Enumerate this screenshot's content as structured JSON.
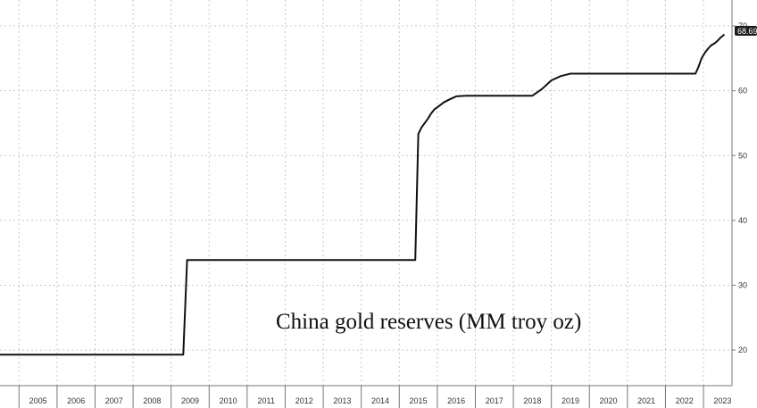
{
  "chart_data": {
    "type": "line",
    "title": "China gold reserves (MM troy oz)",
    "xlabel": "",
    "ylabel": "",
    "x_tick_labels": [
      "2005",
      "2006",
      "2007",
      "2008",
      "2009",
      "2010",
      "2011",
      "2012",
      "2013",
      "2014",
      "2015",
      "2016",
      "2017",
      "2018",
      "2019",
      "2020",
      "2021",
      "2022",
      "2023"
    ],
    "y_ticks": [
      20,
      30,
      40,
      50,
      60,
      70
    ],
    "ylim": [
      14.5,
      74
    ],
    "xlim": [
      2004.5,
      2023.75
    ],
    "grid": true,
    "y_axis_position": "right",
    "last_value_label": "68.69",
    "series": [
      {
        "name": "",
        "color": "#111111",
        "x": [
          2004.5,
          2009.32,
          2009.42,
          2015.42,
          2015.5,
          2015.58,
          2015.67,
          2015.75,
          2015.83,
          2015.92,
          2016.0,
          2016.17,
          2016.33,
          2016.5,
          2016.75,
          2017.0,
          2018.5,
          2018.75,
          2019.0,
          2019.25,
          2019.5,
          2019.75,
          2020.0,
          2021.0,
          2022.0,
          2022.79,
          2022.87,
          2022.95,
          2023.04,
          2023.12,
          2023.2,
          2023.29,
          2023.37,
          2023.45,
          2023.55
        ],
        "y": [
          19.29,
          19.29,
          33.89,
          33.89,
          53.31,
          54.29,
          55.02,
          55.65,
          56.43,
          57.12,
          57.45,
          58.2,
          58.69,
          59.14,
          59.24,
          59.24,
          59.24,
          60.26,
          61.6,
          62.26,
          62.64,
          62.64,
          62.64,
          62.64,
          62.64,
          62.64,
          63.7,
          65.0,
          65.9,
          66.5,
          67.0,
          67.3,
          67.7,
          68.2,
          68.69
        ]
      }
    ]
  }
}
